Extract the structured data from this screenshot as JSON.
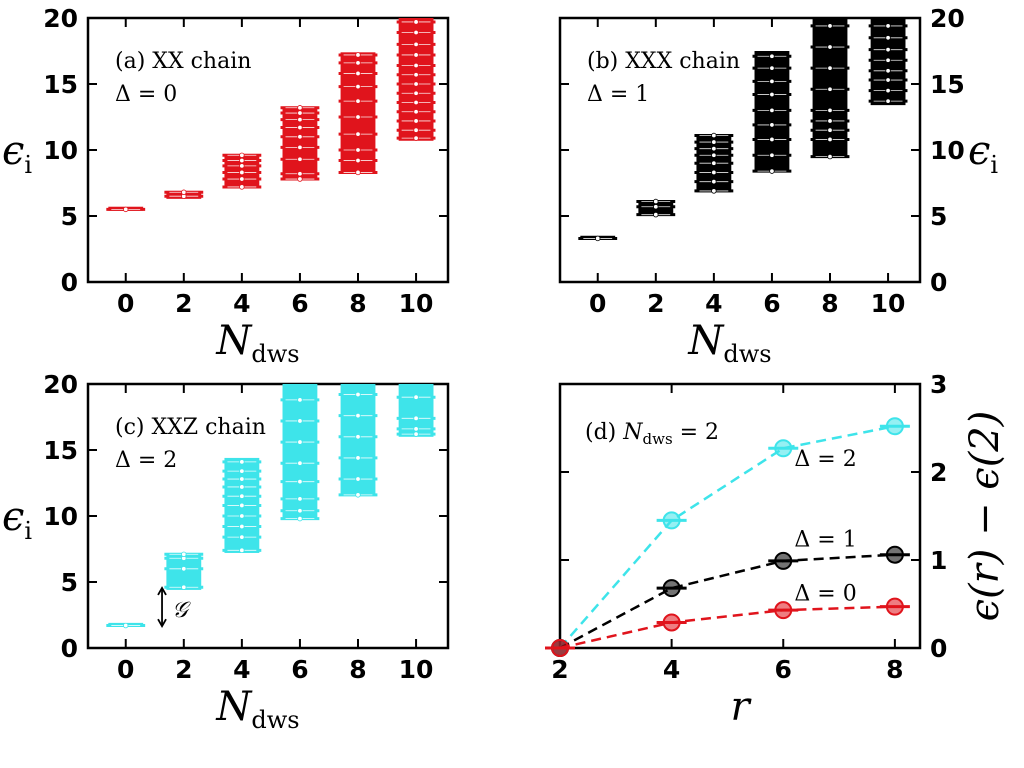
{
  "chart_data": [
    {
      "type": "bar",
      "panel": "a",
      "annotation_lines": [
        "(a) XX chain",
        "Δ = 0"
      ],
      "xlabel": "N",
      "xlabel_sub": "dws",
      "ylabel": "ϵ",
      "ylabel_sub": "i",
      "ylabel_position": "left",
      "xlim": [
        -1.3,
        11.1
      ],
      "ylim": [
        0,
        20
      ],
      "xticks": [
        "0",
        "2",
        "4",
        "6",
        "8",
        "10"
      ],
      "yticks": [
        "0",
        "5",
        "10",
        "15",
        "20"
      ],
      "color": "#e0141c",
      "grid": false,
      "series": [
        {
          "x": 0,
          "low": 5.4,
          "high": 5.6,
          "levels": [
            5.5
          ]
        },
        {
          "x": 2,
          "low": 6.3,
          "high": 6.9,
          "levels": [
            6.5,
            6.8
          ]
        },
        {
          "x": 4,
          "low": 7.1,
          "high": 9.7,
          "levels": [
            7.2,
            7.8,
            8.3,
            8.8,
            9.2,
            9.6
          ]
        },
        {
          "x": 6,
          "low": 7.7,
          "high": 13.3,
          "levels": [
            7.8,
            8.2,
            9.3,
            10.2,
            11.0,
            11.7,
            12.3,
            12.8,
            13.2
          ]
        },
        {
          "x": 8,
          "low": 8.2,
          "high": 17.4,
          "levels": [
            8.3,
            9.2,
            10.0,
            11.2,
            12.5,
            13.7,
            14.8,
            15.8,
            16.6,
            17.2
          ]
        },
        {
          "x": 10,
          "low": 10.7,
          "high": 20.0,
          "levels": [
            10.9,
            11.5,
            12.2,
            12.9,
            13.6,
            14.3,
            15.0,
            15.7,
            16.4,
            17.2,
            18.0,
            18.9,
            19.7
          ]
        }
      ]
    },
    {
      "type": "bar",
      "panel": "b",
      "annotation_lines": [
        "(b) XXX chain",
        "Δ = 1"
      ],
      "xlabel": "N",
      "xlabel_sub": "dws",
      "ylabel": "ϵ",
      "ylabel_sub": "i",
      "ylabel_position": "right",
      "xlim": [
        -1.3,
        11.1
      ],
      "ylim": [
        0,
        20
      ],
      "xticks": [
        "0",
        "2",
        "4",
        "6",
        "8",
        "10"
      ],
      "yticks": [
        "0",
        "5",
        "10",
        "15",
        "20"
      ],
      "color": "#000000",
      "grid": false,
      "series": [
        {
          "x": 0,
          "low": 3.2,
          "high": 3.4,
          "levels": [
            3.3
          ]
        },
        {
          "x": 2,
          "low": 5.1,
          "high": 6.2,
          "levels": [
            5.1,
            5.7,
            6.1
          ]
        },
        {
          "x": 4,
          "low": 6.8,
          "high": 11.2,
          "levels": [
            6.9,
            7.6,
            8.3,
            9.0,
            9.6,
            10.1,
            10.6,
            11.1
          ]
        },
        {
          "x": 6,
          "low": 8.3,
          "high": 17.5,
          "levels": [
            8.4,
            9.6,
            10.8,
            11.9,
            13.0,
            14.2,
            15.2,
            16.2,
            17.1
          ]
        },
        {
          "x": 8,
          "low": 9.5,
          "high": 20.0,
          "levels": [
            9.5,
            10.8,
            11.5,
            12.2,
            13.0,
            14.6,
            16.2,
            17.8,
            19.4
          ]
        },
        {
          "x": 10,
          "low": 13.4,
          "high": 20.0,
          "levels": [
            13.7,
            14.5,
            15.3,
            16.0,
            16.8,
            17.6,
            18.5,
            19.4
          ]
        }
      ]
    },
    {
      "type": "bar",
      "panel": "c",
      "annotation_lines": [
        "(c) XXZ chain",
        "Δ = 2"
      ],
      "gap_label": "𝒢",
      "xlabel": "N",
      "xlabel_sub": "dws",
      "ylabel": "ϵ",
      "ylabel_sub": "i",
      "ylabel_position": "left",
      "xlim": [
        -1.3,
        11.1
      ],
      "ylim": [
        0,
        20
      ],
      "xticks": [
        "0",
        "2",
        "4",
        "6",
        "8",
        "10"
      ],
      "yticks": [
        "0",
        "5",
        "10",
        "15",
        "20"
      ],
      "color": "#3ee4ea",
      "grid": false,
      "series": [
        {
          "x": 0,
          "low": 1.6,
          "high": 1.8,
          "levels": [
            1.7
          ]
        },
        {
          "x": 2,
          "low": 4.4,
          "high": 7.2,
          "levels": [
            4.6,
            6.0,
            6.8,
            7.1
          ]
        },
        {
          "x": 4,
          "low": 7.2,
          "high": 14.4,
          "levels": [
            7.4,
            8.4,
            9.2,
            10.0,
            10.8,
            11.5,
            12.2,
            12.8,
            13.4,
            14.1
          ]
        },
        {
          "x": 6,
          "low": 9.8,
          "high": 20.0,
          "levels": [
            9.8,
            10.4,
            11.3,
            12.6,
            14.0,
            15.6,
            17.2,
            18.8
          ]
        },
        {
          "x": 8,
          "low": 11.6,
          "high": 20.0,
          "levels": [
            11.6,
            12.8,
            14.4,
            16.0,
            17.6,
            19.2
          ]
        },
        {
          "x": 10,
          "low": 16.0,
          "high": 20.0,
          "levels": [
            16.2,
            16.6,
            17.4,
            19.0
          ]
        }
      ]
    },
    {
      "type": "line",
      "panel": "d",
      "annotation": "(d)",
      "annotation_math": "N",
      "annotation_math_sub": "dws",
      "annotation_rest": " = 2",
      "xlabel": "r",
      "ylabel": "ϵ(r) − ϵ(2)",
      "ylabel_position": "right",
      "xlim": [
        2,
        8.45
      ],
      "ylim": [
        0,
        3
      ],
      "xticks": [
        "2",
        "4",
        "6",
        "8"
      ],
      "yticks": [
        "0",
        "1",
        "2",
        "3"
      ],
      "x": [
        2,
        4,
        6,
        8
      ],
      "grid": false,
      "series": [
        {
          "name": "Δ = 2",
          "color": "#3ee4ea",
          "values": [
            0,
            1.45,
            2.27,
            2.52
          ]
        },
        {
          "name": "Δ = 1",
          "color": "#000000",
          "values": [
            0,
            0.68,
            0.99,
            1.06
          ]
        },
        {
          "name": "Δ = 0",
          "color": "#e0141c",
          "values": [
            0,
            0.29,
            0.43,
            0.47
          ]
        }
      ]
    }
  ]
}
